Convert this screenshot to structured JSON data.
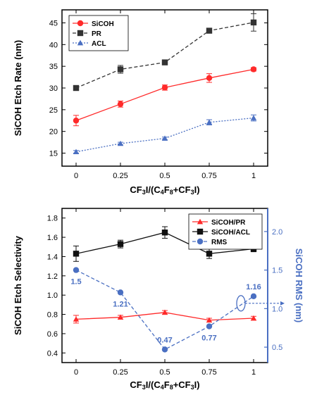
{
  "chart_data": [
    {
      "type": "line",
      "x": [
        0,
        0.25,
        0.5,
        0.75,
        1
      ],
      "xticks": [
        "0",
        "0.25",
        "0.5",
        "0.75",
        "1"
      ],
      "xlabel": "CF3I/(C4F8+CF3I)",
      "ylabel": "SiCOH Etch Rate (nm)",
      "ylim": [
        12,
        48
      ],
      "yticks": [
        15,
        20,
        25,
        30,
        35,
        40,
        45
      ],
      "legend_position": "top-left",
      "series": [
        {
          "name": "SiCOH",
          "values": [
            22.5,
            26.3,
            30.1,
            32.3,
            34.3
          ],
          "errors": [
            1.2,
            0.7,
            0.6,
            1.0,
            0.4
          ],
          "color": "#ff2a2a",
          "marker": "circle",
          "line": "solid"
        },
        {
          "name": "PR",
          "values": [
            30.0,
            34.3,
            35.9,
            43.2,
            45.1
          ],
          "errors": [
            0.5,
            0.9,
            0.3,
            0.5,
            2.0
          ],
          "color": "#333333",
          "marker": "square",
          "line": "dashed"
        },
        {
          "name": "ACL",
          "values": [
            15.3,
            17.2,
            18.4,
            22.1,
            23.1
          ],
          "errors": [
            0.3,
            0.3,
            0.3,
            0.6,
            0.7
          ],
          "color": "#4a6fc2",
          "marker": "triangle",
          "line": "dotted"
        }
      ]
    },
    {
      "type": "line",
      "x": [
        0,
        0.25,
        0.5,
        0.75,
        1
      ],
      "xticks": [
        "0",
        "0.25",
        "0.5",
        "0.75",
        "1"
      ],
      "xlabel": "CF3I/(C4F8+CF3I)",
      "ylabel": "SiCOH Etch Selectivity",
      "ylim": [
        0.3,
        1.9
      ],
      "yticks": [
        0.4,
        0.6,
        0.8,
        1.0,
        1.2,
        1.4,
        1.6,
        1.8
      ],
      "ytick_labels": [
        "0.4",
        "0.6",
        "0.8",
        "1.0",
        "1.2",
        "1.4",
        "1.6",
        "1.8"
      ],
      "y2label": "SiCOH RMS (nm)",
      "y2lim": [
        0.3,
        2.3
      ],
      "y2ticks": [
        0.5,
        1.0,
        1.5,
        2.0
      ],
      "y2tick_labels": [
        "0.5",
        "1.0",
        "1.5",
        "2.0"
      ],
      "legend_position": "top-right",
      "series": [
        {
          "name": "SiCOH/PR",
          "axis": "left",
          "values": [
            0.75,
            0.77,
            0.82,
            0.74,
            0.76
          ],
          "errors": [
            0.04,
            0.02,
            0.02,
            0.02,
            0.02
          ],
          "color": "#ff2a2a",
          "marker": "triangle",
          "line": "solid"
        },
        {
          "name": "SiCOH/ACL",
          "axis": "left",
          "values": [
            1.43,
            1.53,
            1.65,
            1.43,
            1.48
          ],
          "errors": [
            0.08,
            0.04,
            0.06,
            0.05,
            0.03
          ],
          "color": "#111111",
          "marker": "square",
          "line": "solid"
        },
        {
          "name": "RMS",
          "axis": "right",
          "values": [
            1.5,
            1.21,
            0.47,
            0.77,
            1.16
          ],
          "color": "#4a6fc2",
          "marker": "circle",
          "line": "dashed"
        }
      ],
      "annotations": [
        "1.5",
        "1.21",
        "0.47",
        "0.77",
        "1.16"
      ]
    }
  ]
}
